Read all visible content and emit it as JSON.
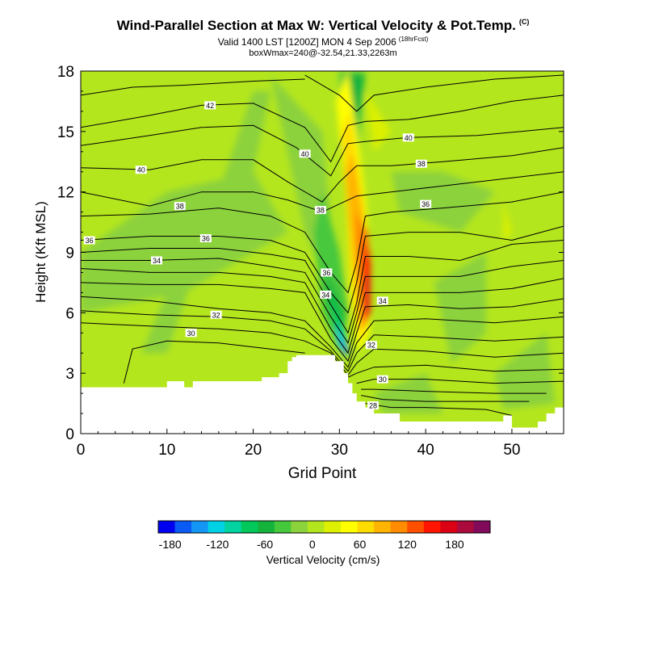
{
  "header": {
    "title": "Wind-Parallel Section at Max W: Vertical Velocity & Pot.Temp.",
    "title_mark": "(C)",
    "valid_line": "Valid 1400 LST [1200Z] MON 4 Sep 2006",
    "forecast_tag": "(18hrFcst)",
    "box_info": "boxWmax=240@-32.54,21.33,2263m"
  },
  "chart_data": {
    "type": "heatmap",
    "xlabel": "Grid Point",
    "ylabel": "Height (Kft MSL)",
    "xlim": [
      0,
      56
    ],
    "ylim": [
      0,
      18
    ],
    "xticks": [
      0,
      10,
      20,
      30,
      40,
      50
    ],
    "yticks": [
      0,
      3,
      6,
      9,
      12,
      15,
      18
    ],
    "colorbar": {
      "label": "Vertical Velocity (cm/s)",
      "tick_labels": [
        "-180",
        "-120",
        "-60",
        "0",
        "60",
        "120",
        "180"
      ],
      "tick_values": [
        -180,
        -120,
        -60,
        0,
        60,
        120,
        180
      ],
      "range": [
        -195,
        225
      ],
      "colors": [
        "#0000f0",
        "#0a5af5",
        "#1496f5",
        "#00d2e6",
        "#00d2a0",
        "#00c85a",
        "#14b43c",
        "#46c83c",
        "#8cd23c",
        "#b4e61e",
        "#dcf000",
        "#ffff00",
        "#ffdc00",
        "#ffb400",
        "#ff8c00",
        "#ff5000",
        "#ff1400",
        "#dc0014",
        "#aa0a3c",
        "#820a5a"
      ]
    },
    "theta_contour_labels": [
      {
        "value": "42",
        "x": 15,
        "y": 16.3
      },
      {
        "value": "40",
        "x": 7,
        "y": 13.1
      },
      {
        "value": "40",
        "x": 26,
        "y": 13.9
      },
      {
        "value": "40",
        "x": 38,
        "y": 14.7
      },
      {
        "value": "38",
        "x": 11.5,
        "y": 11.3
      },
      {
        "value": "38",
        "x": 27.8,
        "y": 11.1
      },
      {
        "value": "38",
        "x": 39.5,
        "y": 13.4
      },
      {
        "value": "36",
        "x": 1,
        "y": 9.6
      },
      {
        "value": "36",
        "x": 14.5,
        "y": 9.7
      },
      {
        "value": "36",
        "x": 28.5,
        "y": 8.0
      },
      {
        "value": "36",
        "x": 40,
        "y": 11.4
      },
      {
        "value": "34",
        "x": 8.8,
        "y": 8.6
      },
      {
        "value": "34",
        "x": 28.4,
        "y": 6.9
      },
      {
        "value": "34",
        "x": 35,
        "y": 6.6
      },
      {
        "value": "32",
        "x": 15.7,
        "y": 5.9
      },
      {
        "value": "32",
        "x": 33.7,
        "y": 4.4
      },
      {
        "value": "30",
        "x": 12.8,
        "y": 5.0
      },
      {
        "value": "30",
        "x": 35,
        "y": 2.7
      },
      {
        "value": "28",
        "x": 33.9,
        "y": 1.4
      }
    ],
    "w_maximum": {
      "x": 33.5,
      "y": 7.5,
      "value": 240
    }
  }
}
